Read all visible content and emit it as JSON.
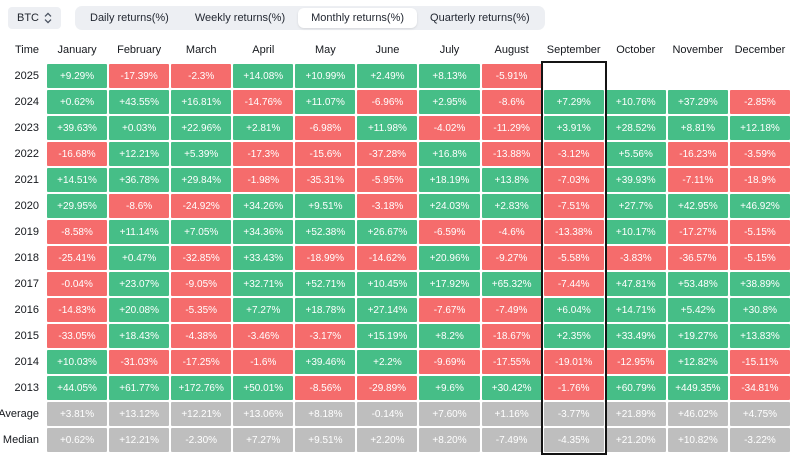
{
  "coin_selector": {
    "label": "BTC"
  },
  "tabs": [
    {
      "label": "Daily returns(%)",
      "selected": false
    },
    {
      "label": "Weekly returns(%)",
      "selected": false
    },
    {
      "label": "Monthly returns(%)",
      "selected": true
    },
    {
      "label": "Quarterly returns(%)",
      "selected": false
    }
  ],
  "table": {
    "time_header": "Time",
    "months": [
      "January",
      "February",
      "March",
      "April",
      "May",
      "June",
      "July",
      "August",
      "September",
      "October",
      "November",
      "December"
    ],
    "highlighted_column": "September",
    "rows": [
      {
        "label": "2025",
        "values": [
          "+9.29%",
          "-17.39%",
          "-2.3%",
          "+14.08%",
          "+10.99%",
          "+2.49%",
          "+8.13%",
          "-5.91%",
          "",
          "",
          "",
          ""
        ],
        "states": "pnnppppneeee"
      },
      {
        "label": "2024",
        "values": [
          "+0.62%",
          "+43.55%",
          "+16.81%",
          "-14.76%",
          "+11.07%",
          "-6.96%",
          "+2.95%",
          "-8.6%",
          "+7.29%",
          "+10.76%",
          "+37.29%",
          "-2.85%"
        ],
        "states": "pppnpnpnpppn"
      },
      {
        "label": "2023",
        "values": [
          "+39.63%",
          "+0.03%",
          "+22.96%",
          "+2.81%",
          "-6.98%",
          "+11.98%",
          "-4.02%",
          "-11.29%",
          "+3.91%",
          "+28.52%",
          "+8.81%",
          "+12.18%"
        ],
        "states": "ppppnpnnpppp"
      },
      {
        "label": "2022",
        "values": [
          "-16.68%",
          "+12.21%",
          "+5.39%",
          "-17.3%",
          "-15.6%",
          "-37.28%",
          "+16.8%",
          "-13.88%",
          "-3.12%",
          "+5.56%",
          "-16.23%",
          "-3.59%"
        ],
        "states": "nppnnnpnnpnn"
      },
      {
        "label": "2021",
        "values": [
          "+14.51%",
          "+36.78%",
          "+29.84%",
          "-1.98%",
          "-35.31%",
          "-5.95%",
          "+18.19%",
          "+13.8%",
          "-7.03%",
          "+39.93%",
          "-7.11%",
          "-18.9%"
        ],
        "states": "pppnnnppnpnn"
      },
      {
        "label": "2020",
        "values": [
          "+29.95%",
          "-8.6%",
          "-24.92%",
          "+34.26%",
          "+9.51%",
          "-3.18%",
          "+24.03%",
          "+2.83%",
          "-7.51%",
          "+27.7%",
          "+42.95%",
          "+46.92%"
        ],
        "states": "pnnppnppnppp"
      },
      {
        "label": "2019",
        "values": [
          "-8.58%",
          "+11.14%",
          "+7.05%",
          "+34.36%",
          "+52.38%",
          "+26.67%",
          "-6.59%",
          "-4.6%",
          "-13.38%",
          "+10.17%",
          "-17.27%",
          "-5.15%"
        ],
        "states": "npppppnnnpnn"
      },
      {
        "label": "2018",
        "values": [
          "-25.41%",
          "+0.47%",
          "-32.85%",
          "+33.43%",
          "-18.99%",
          "-14.62%",
          "+20.96%",
          "-9.27%",
          "-5.58%",
          "-3.83%",
          "-36.57%",
          "-5.15%"
        ],
        "states": "npnpnnpnnnnn"
      },
      {
        "label": "2017",
        "values": [
          "-0.04%",
          "+23.07%",
          "-9.05%",
          "+32.71%",
          "+52.71%",
          "+10.45%",
          "+17.92%",
          "+65.32%",
          "-7.44%",
          "+47.81%",
          "+53.48%",
          "+38.89%"
        ],
        "states": "npnpppppnppp"
      },
      {
        "label": "2016",
        "values": [
          "-14.83%",
          "+20.08%",
          "-5.35%",
          "+7.27%",
          "+18.78%",
          "+27.14%",
          "-7.67%",
          "-7.49%",
          "+6.04%",
          "+14.71%",
          "+5.42%",
          "+30.8%"
        ],
        "states": "npnpppnnpppp"
      },
      {
        "label": "2015",
        "values": [
          "-33.05%",
          "+18.43%",
          "-4.38%",
          "-3.46%",
          "-3.17%",
          "+15.19%",
          "+8.2%",
          "-18.67%",
          "+2.35%",
          "+33.49%",
          "+19.27%",
          "+13.83%"
        ],
        "states": "npnnnppnpppp"
      },
      {
        "label": "2014",
        "values": [
          "+10.03%",
          "-31.03%",
          "-17.25%",
          "-1.6%",
          "+39.46%",
          "+2.2%",
          "-9.69%",
          "-17.55%",
          "-19.01%",
          "-12.95%",
          "+12.82%",
          "-15.11%"
        ],
        "states": "pnnnppnnnnpn"
      },
      {
        "label": "2013",
        "values": [
          "+44.05%",
          "+61.77%",
          "+172.76%",
          "+50.01%",
          "-8.56%",
          "-29.89%",
          "+9.6%",
          "+30.42%",
          "-1.76%",
          "+60.79%",
          "+449.35%",
          "-34.81%"
        ],
        "states": "ppppnnppnppn"
      },
      {
        "label": "Average",
        "values": [
          "+3.81%",
          "+13.12%",
          "+12.21%",
          "+13.06%",
          "+8.18%",
          "-0.14%",
          "+7.60%",
          "+1.16%",
          "-3.77%",
          "+21.89%",
          "+46.02%",
          "+4.75%"
        ],
        "states": "ssssssssssss"
      },
      {
        "label": "Median",
        "values": [
          "+0.62%",
          "+12.21%",
          "-2.30%",
          "+7.27%",
          "+9.51%",
          "+2.20%",
          "+8.20%",
          "-7.49%",
          "-4.35%",
          "+21.20%",
          "+10.82%",
          "-3.22%"
        ],
        "states": "ssssssssssss"
      }
    ]
  },
  "colors": {
    "positive": "#46be87",
    "negative": "#f56c6c",
    "summary": "#bebebe",
    "highlight_border": "#141414",
    "toolbar_bg": "#edeff3"
  }
}
